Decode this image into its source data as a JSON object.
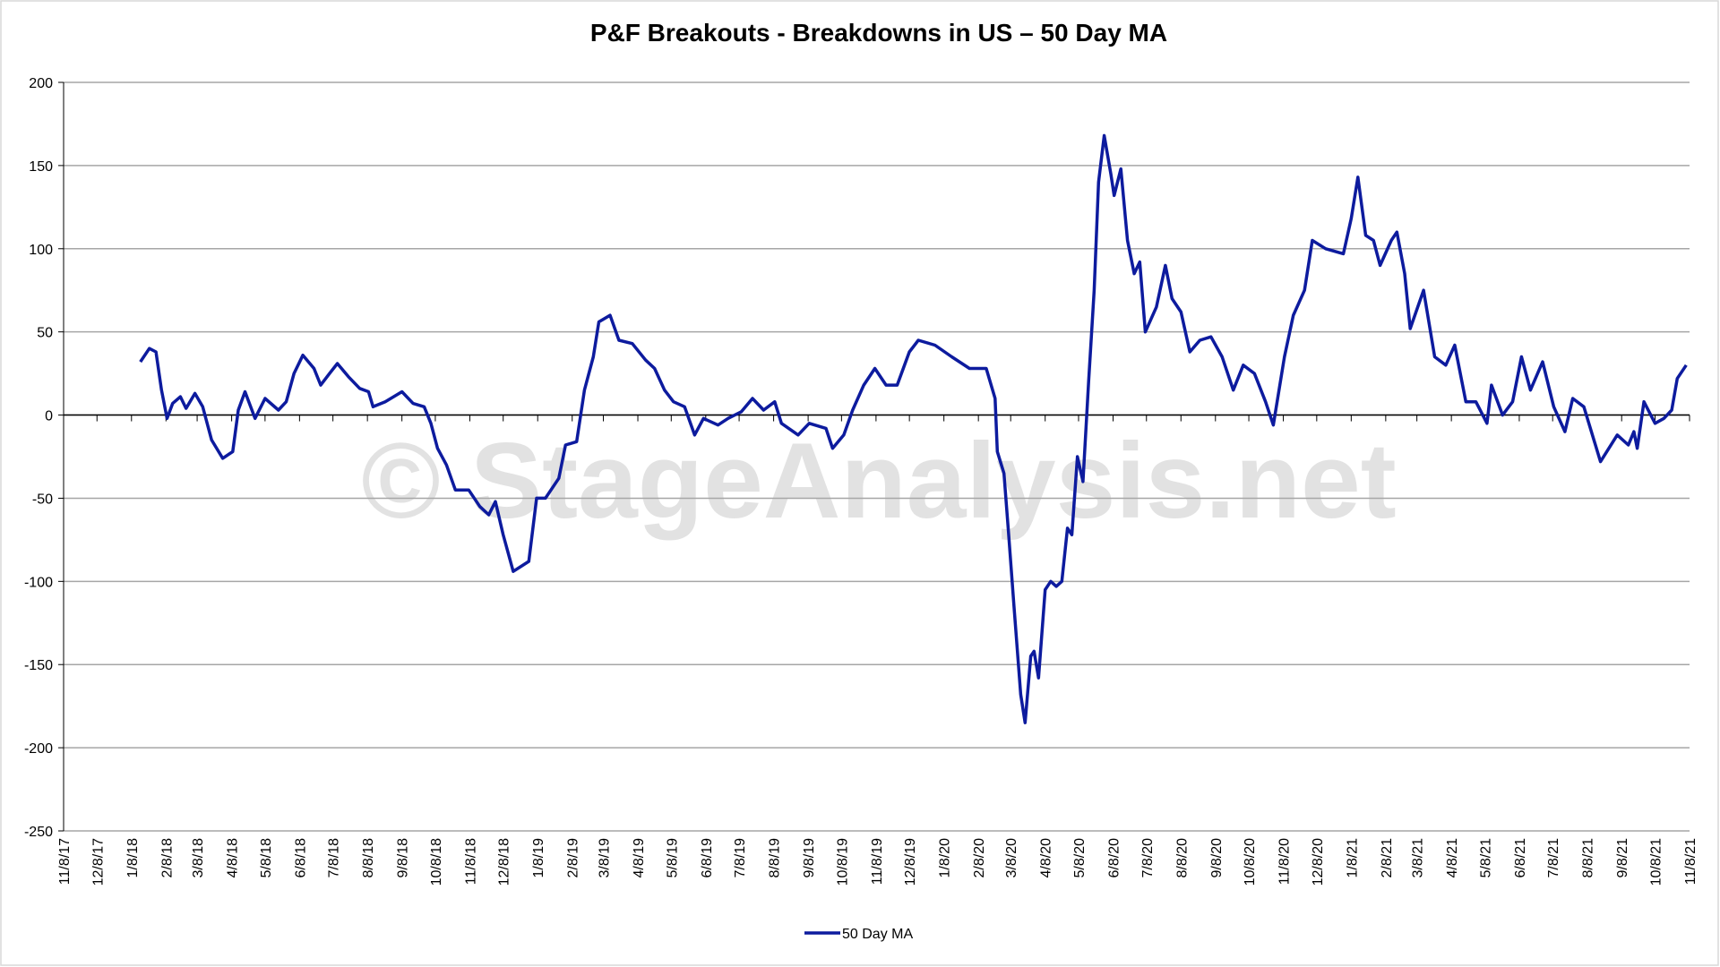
{
  "chart_data": {
    "type": "line",
    "title": "P&F Breakouts - Breakdowns in US – 50 Day MA",
    "watermark": "© StageAnalysis.net",
    "x": [
      "1/16/18",
      "1/24/18",
      "1/30/18",
      "2/4/18",
      "2/9/18",
      "2/14/18",
      "2/21/18",
      "2/26/18",
      "3/6/18",
      "3/13/18",
      "3/21/18",
      "3/31/18",
      "4/9/18",
      "4/14/18",
      "4/20/18",
      "4/29/18",
      "5/8/18",
      "5/20/18",
      "5/27/18",
      "6/3/18",
      "6/11/18",
      "6/21/18",
      "6/27/18",
      "7/5/18",
      "7/12/18",
      "7/22/18",
      "8/1/18",
      "8/9/18",
      "8/13/18",
      "8/24/18",
      "9/8/18",
      "9/18/18",
      "9/28/18",
      "10/4/18",
      "10/10/18",
      "10/18/18",
      "10/26/18",
      "11/7/18",
      "11/17/18",
      "11/25/18",
      "12/1/18",
      "12/8/18",
      "12/17/18",
      "12/31/18",
      "1/7/19",
      "1/15/19",
      "1/27/19",
      "2/2/19",
      "2/12/19",
      "2/19/19",
      "2/27/19",
      "3/4/19",
      "3/14/19",
      "3/22/19",
      "4/3/19",
      "4/15/19",
      "4/23/19",
      "5/2/19",
      "5/10/19",
      "5/20/19",
      "5/29/19",
      "6/6/19",
      "6/19/19",
      "6/28/19",
      "7/10/19",
      "7/20/19",
      "7/30/19",
      "8/9/19",
      "8/15/19",
      "8/30/19",
      "9/9/19",
      "9/24/19",
      "9/30/19",
      "10/10/19",
      "10/18/19",
      "10/28/19",
      "11/7/19",
      "11/17/19",
      "11/27/19",
      "12/8/19",
      "12/16/19",
      "12/31/19",
      "1/15/20",
      "1/31/20",
      "2/15/20",
      "2/23/20",
      "2/25/20",
      "3/2/20",
      "3/6/20",
      "3/11/20",
      "3/17/20",
      "3/21/20",
      "3/26/20",
      "3/29/20",
      "4/2/20",
      "4/8/20",
      "4/13/20",
      "4/18/20",
      "4/23/20",
      "4/28/20",
      "5/2/20",
      "5/7/20",
      "5/12/20",
      "5/17/20",
      "5/22/20",
      "5/26/20",
      "5/31/20",
      "6/6/20",
      "6/9/20",
      "6/15/20",
      "6/21/20",
      "6/27/20",
      "7/2/20",
      "7/7/20",
      "7/17/20",
      "7/25/20",
      "7/31/20",
      "8/8/20",
      "8/16/20",
      "8/25/20",
      "9/4/20",
      "9/14/20",
      "9/24/20",
      "10/3/20",
      "10/13/20",
      "10/23/20",
      "10/30/20",
      "11/9/20",
      "11/17/20",
      "11/27/20",
      "12/4/20",
      "12/16/20",
      "1/1/21",
      "1/8/21",
      "1/14/21",
      "1/21/21",
      "1/28/21",
      "2/3/21",
      "2/13/21",
      "2/18/21",
      "2/25/21",
      "3/2/21",
      "3/14/21",
      "3/24/21",
      "4/3/21",
      "4/11/21",
      "4/21/21",
      "4/30/21",
      "5/10/21",
      "5/14/21",
      "5/24/21",
      "6/2/21",
      "6/10/21",
      "6/18/21",
      "6/29/21",
      "7/9/21",
      "7/19/21",
      "7/26/21",
      "8/5/21",
      "8/20/21",
      "9/4/21",
      "9/14/21",
      "9/19/21",
      "9/22/21",
      "9/28/21",
      "10/8/21",
      "10/16/21",
      "10/23/21",
      "10/28/21",
      "11/5/21"
    ],
    "series": [
      {
        "name": "50 Day MA",
        "color": "#0d1b9e",
        "values": [
          32,
          40,
          38,
          15,
          -2,
          7,
          11,
          4,
          13,
          5,
          -15,
          -26,
          -22,
          3,
          14,
          -2,
          10,
          3,
          8,
          25,
          36,
          28,
          18,
          25,
          31,
          23,
          16,
          14,
          5,
          8,
          14,
          7,
          5,
          -5,
          -20,
          -30,
          -45,
          -45,
          -55,
          -60,
          -52,
          -72,
          -94,
          -88,
          -50,
          -50,
          -38,
          -18,
          -16,
          15,
          35,
          56,
          60,
          45,
          43,
          33,
          28,
          15,
          8,
          5,
          -12,
          -2,
          -6,
          -2,
          2,
          10,
          3,
          8,
          -5,
          -12,
          -5,
          -8,
          -20,
          -12,
          3,
          18,
          28,
          18,
          18,
          38,
          45,
          42,
          35,
          28,
          28,
          10,
          -22,
          -35,
          -70,
          -115,
          -168,
          -185,
          -145,
          -142,
          -158,
          -105,
          -100,
          -103,
          -100,
          -68,
          -72,
          -25,
          -40,
          20,
          75,
          140,
          168,
          145,
          132,
          148,
          105,
          85,
          92,
          50,
          65,
          90,
          70,
          62,
          38,
          45,
          47,
          35,
          15,
          30,
          25,
          8,
          -6,
          35,
          60,
          75,
          105,
          100,
          97,
          118,
          143,
          108,
          105,
          90,
          105,
          110,
          85,
          52,
          75,
          35,
          30,
          42,
          8,
          8,
          -5,
          18,
          0,
          8,
          35,
          15,
          32,
          5,
          -10,
          10,
          5,
          -28,
          -12,
          -18,
          -10,
          -20,
          8,
          -5,
          -2,
          3,
          22,
          30
        ]
      }
    ],
    "xlim": [
      "11/8/17",
      "11/8/21"
    ],
    "xticks": [
      "11/8/17",
      "12/8/17",
      "1/8/18",
      "2/8/18",
      "3/8/18",
      "4/8/18",
      "5/8/18",
      "6/8/18",
      "7/8/18",
      "8/8/18",
      "9/8/18",
      "10/8/18",
      "11/8/18",
      "12/8/18",
      "1/8/19",
      "2/8/19",
      "3/8/19",
      "4/8/19",
      "5/8/19",
      "6/8/19",
      "7/8/19",
      "8/8/19",
      "9/8/19",
      "10/8/19",
      "11/8/19",
      "12/8/19",
      "1/8/20",
      "2/8/20",
      "3/8/20",
      "4/8/20",
      "5/8/20",
      "6/8/20",
      "7/8/20",
      "8/8/20",
      "9/8/20",
      "10/8/20",
      "11/8/20",
      "12/8/20",
      "1/8/21",
      "2/8/21",
      "3/8/21",
      "4/8/21",
      "5/8/21",
      "6/8/21",
      "7/8/21",
      "8/8/21",
      "9/8/21",
      "10/8/21",
      "11/8/21"
    ],
    "ylim": [
      -250,
      200
    ],
    "yticks": [
      -250,
      -200,
      -150,
      -100,
      -50,
      0,
      50,
      100,
      150,
      200
    ],
    "grid": true,
    "legend": "bottom"
  }
}
